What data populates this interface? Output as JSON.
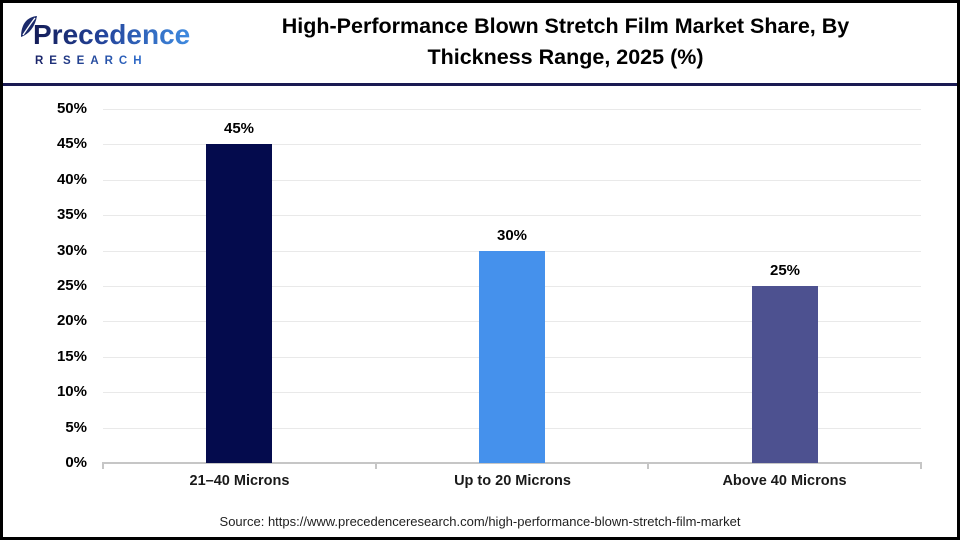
{
  "header": {
    "logo": {
      "name": "Precedence Research logo",
      "icon": "leaf-icon",
      "line1": "Precedence",
      "line2": "RESEARCH"
    },
    "title_line1": "High-Performance Blown Stretch Film Market Share, By",
    "title_line2": "Thickness Range, 2025 (%)"
  },
  "chart_data": {
    "type": "bar",
    "title": "High-Performance Blown Stretch Film Market Share, By Thickness Range, 2025 (%)",
    "categories": [
      "21–40 Microns",
      "Up to 20 Microns",
      "Above 40 Microns"
    ],
    "values": [
      45,
      30,
      25
    ],
    "value_labels": [
      "45%",
      "30%",
      "25%"
    ],
    "bar_colors": [
      "#040B4D",
      "#4591EC",
      "#4D5190"
    ],
    "xlabel": "",
    "ylabel": "",
    "ylim": [
      0,
      50
    ],
    "ytick_step": 5,
    "ytick_suffix": "%",
    "grid": true,
    "legend": false
  },
  "footer": {
    "source": "Source: https://www.precedenceresearch.com/high-performance-blown-stretch-film-market"
  },
  "colors": {
    "border": "#000000",
    "divider": "#1A1A52",
    "gridline": "#E9E9E9",
    "axis": "#C6C6C6",
    "title_text": "#000000"
  }
}
